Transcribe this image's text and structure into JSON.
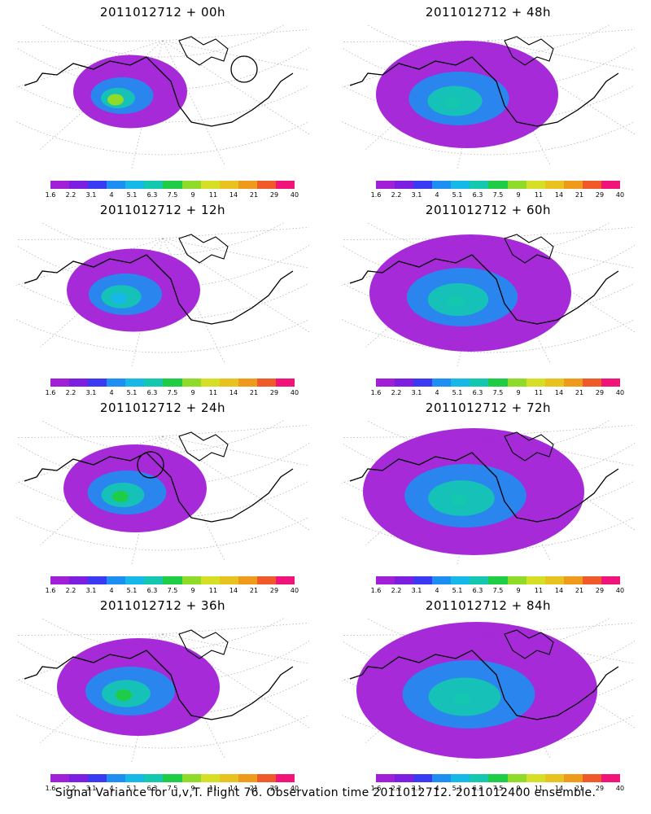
{
  "caption": "Signal Variance for u,v,T. Flight 76. Observation time 2011012712. 2011012400 ensemble.",
  "colorbar": {
    "labels": [
      "1.6",
      "2.2",
      "3.1",
      "4",
      "5.1",
      "6.3",
      "7.5",
      "9",
      "11",
      "14",
      "21",
      "29",
      "40"
    ],
    "colors": [
      "#a11fd6",
      "#7d1fe0",
      "#3a3af2",
      "#1d8ff2",
      "#15b8e6",
      "#14c8b0",
      "#1fcc46",
      "#8edb2a",
      "#d5df26",
      "#e8c320",
      "#f09a1c",
      "#f05a2a",
      "#f0147a"
    ]
  },
  "panels": [
    {
      "title": "2011012712 + 00h",
      "coverage": 0.25,
      "peak": 0.8,
      "circle": true
    },
    {
      "title": "2011012712 + 48h",
      "coverage": 0.6,
      "peak": 0.6,
      "circle": false
    },
    {
      "title": "2011012712 + 12h",
      "coverage": 0.35,
      "peak": 0.45,
      "circle": false
    },
    {
      "title": "2011012712 + 60h",
      "coverage": 0.7,
      "peak": 0.6,
      "circle": false
    },
    {
      "title": "2011012712 + 24h",
      "coverage": 0.4,
      "peak": 0.65,
      "circle": true
    },
    {
      "title": "2011012712 + 72h",
      "coverage": 0.8,
      "peak": 0.55,
      "circle": false
    },
    {
      "title": "2011012712 + 36h",
      "coverage": 0.5,
      "peak": 0.65,
      "circle": false
    },
    {
      "title": "2011012712 + 84h",
      "coverage": 0.9,
      "peak": 0.6,
      "circle": false
    }
  ]
}
